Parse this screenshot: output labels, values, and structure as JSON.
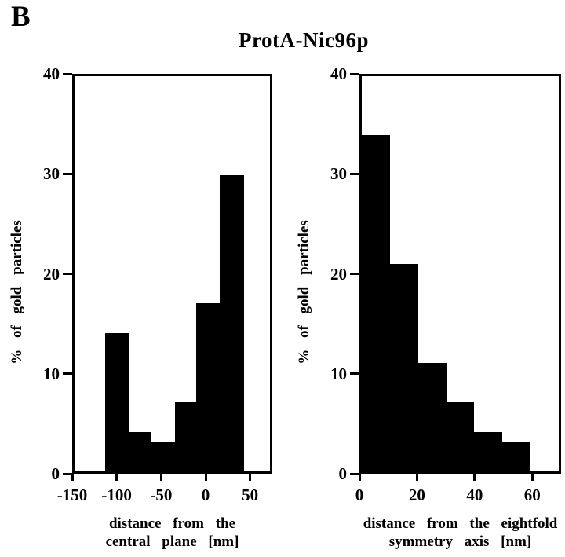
{
  "figure_label": "B",
  "title": "ProtA-Nic96p",
  "colors": {
    "bar": "#000000",
    "axis": "#000000",
    "text": "#000000",
    "background": "#ffffff"
  },
  "chart_data": [
    {
      "type": "bar",
      "title": "ProtA-Nic96p",
      "ylabel": "% of gold particles",
      "xlabel_lines": [
        "distance from the",
        "central plane [nm]"
      ],
      "xlabel": "distance from the central plane [nm]",
      "xlim": [
        -150,
        75
      ],
      "ylim": [
        0,
        40
      ],
      "x_ticks": [
        -150,
        -100,
        -50,
        0,
        50
      ],
      "y_ticks": [
        0,
        10,
        20,
        30,
        40
      ],
      "bin_edges": [
        -115,
        -88,
        -61,
        -34.5,
        -9.5,
        17.5,
        45.5
      ],
      "values": [
        14,
        4,
        3,
        7,
        17,
        30
      ],
      "grid": false,
      "legend": false
    },
    {
      "type": "bar",
      "title": "ProtA-Nic96p",
      "ylabel": "% of gold particles",
      "xlabel_lines": [
        "distance from the eightfold",
        "symmetry axis [nm]"
      ],
      "xlabel": "distance from the eightfold symmetry axis [nm]",
      "xlim": [
        0,
        70
      ],
      "ylim": [
        0,
        40
      ],
      "x_ticks": [
        0,
        20,
        40,
        60
      ],
      "y_ticks": [
        0,
        10,
        20,
        30,
        40
      ],
      "bin_edges": [
        0,
        10,
        20,
        30,
        40,
        50,
        60
      ],
      "values": [
        34,
        21,
        11,
        7,
        4,
        3
      ],
      "grid": false,
      "legend": false
    }
  ]
}
